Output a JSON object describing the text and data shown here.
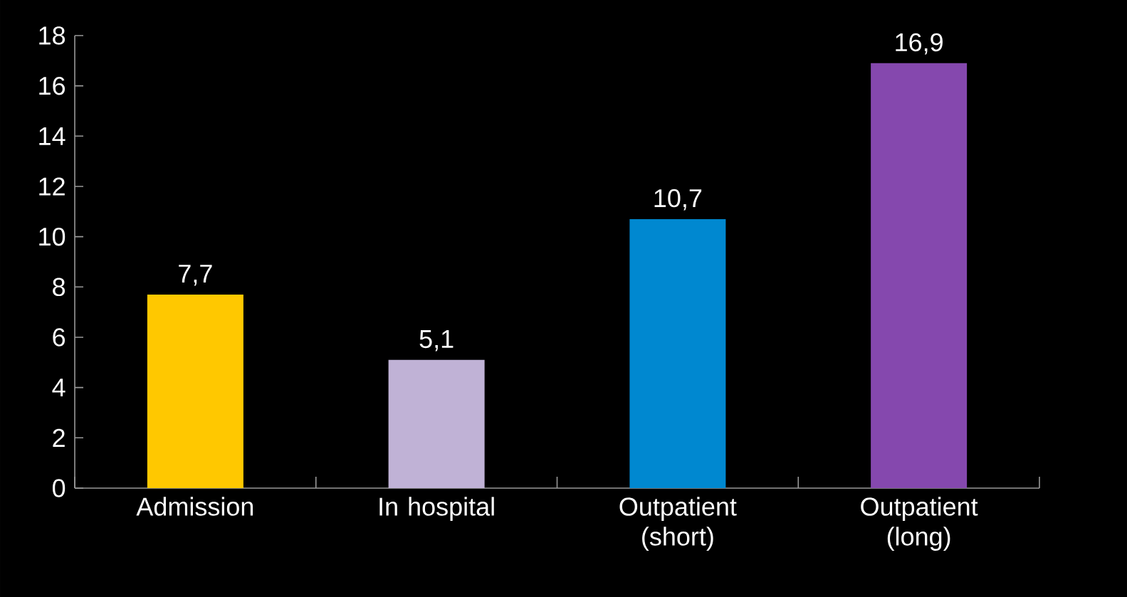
{
  "chart_data": {
    "type": "bar",
    "categories": [
      "Admission",
      "In hospital",
      "Outpatient (short)",
      "Outpatient (long)"
    ],
    "values": [
      7.7,
      5.1,
      10.7,
      16.9
    ],
    "value_labels": [
      "7,7",
      "5,1",
      "10,7",
      "16,9"
    ],
    "colors": [
      "#ffc800",
      "#c0b2d6",
      "#0088d0",
      "#8548ae"
    ],
    "ylim": [
      0,
      18
    ],
    "yticks": [
      0,
      2,
      4,
      6,
      8,
      10,
      12,
      14,
      16,
      18
    ],
    "grid": false
  }
}
